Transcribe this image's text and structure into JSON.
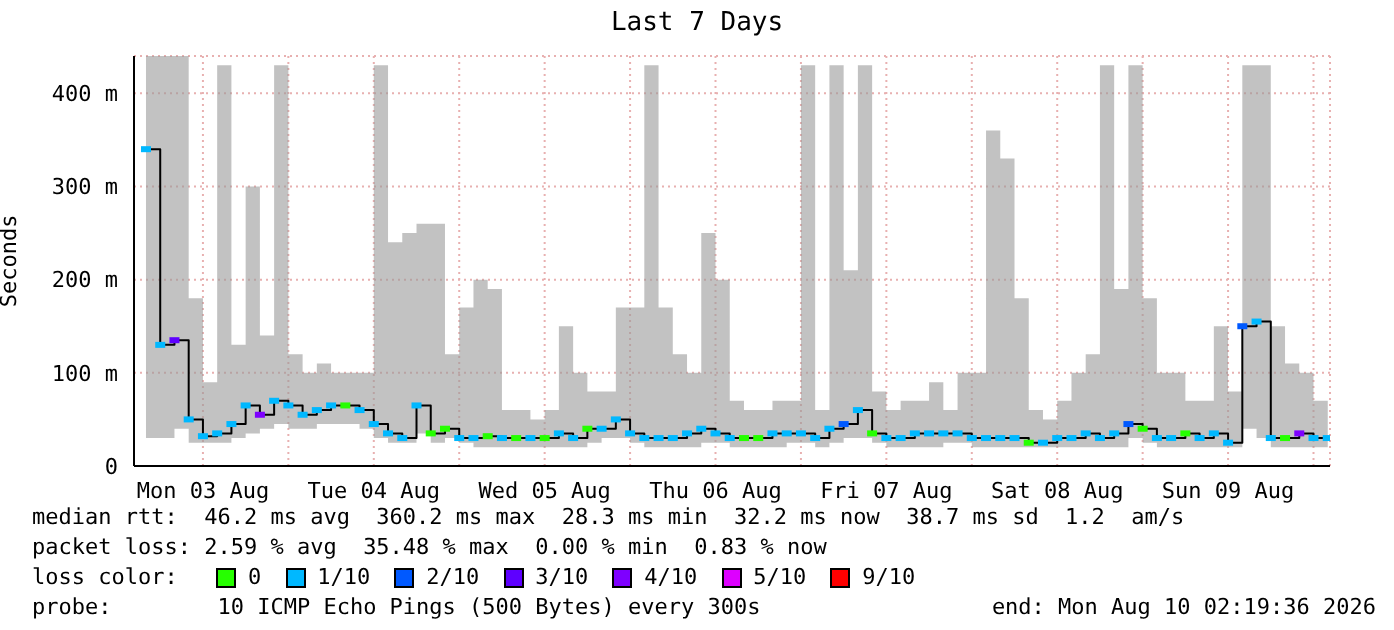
{
  "chart_data": {
    "type": "step",
    "title": "Last 7 Days",
    "ylabel": "Seconds",
    "legend_title": "loss color:",
    "legend": "bottom",
    "grid": true,
    "marker": "square",
    "annotations": [
      "median rtt:  46.2 ms avg  360.2 ms max  28.3 ms min  32.2 ms now  38.7 ms sd  1.2  am/s",
      "packet loss: 2.59 % avg  35.48 % max  0.00 % min  0.83 % now",
      "probe:        10 ICMP Echo Pings (500 Bytes) every 300s",
      "end: Mon Aug 10 02:19:36 2026"
    ],
    "xlim": [
      "2026-08-03T02:19",
      "2026-08-10T02:19"
    ],
    "xticks": [
      {
        "value": "2026-08-03T12:00",
        "label": "Mon 03 Aug"
      },
      {
        "value": "2026-08-04T00:00",
        "label": null
      },
      {
        "value": "2026-08-04T12:00",
        "label": "Tue 04 Aug"
      },
      {
        "value": "2026-08-05T00:00",
        "label": null
      },
      {
        "value": "2026-08-05T12:00",
        "label": "Wed 05 Aug"
      },
      {
        "value": "2026-08-06T00:00",
        "label": null
      },
      {
        "value": "2026-08-06T12:00",
        "label": "Thu 06 Aug"
      },
      {
        "value": "2026-08-07T00:00",
        "label": null
      },
      {
        "value": "2026-08-07T12:00",
        "label": "Fri 07 Aug"
      },
      {
        "value": "2026-08-08T00:00",
        "label": null
      },
      {
        "value": "2026-08-08T12:00",
        "label": "Sat 08 Aug"
      },
      {
        "value": "2026-08-09T00:00",
        "label": null
      },
      {
        "value": "2026-08-09T12:00",
        "label": "Sun 09 Aug"
      },
      {
        "value": "2026-08-10T00:00",
        "label": null
      }
    ],
    "ylim": [
      0,
      440
    ],
    "yticks": [
      0,
      {
        "value": 100,
        "label": "100 m"
      },
      {
        "value": 200,
        "label": "200 m"
      },
      {
        "value": 300,
        "label": "300 m"
      },
      {
        "value": 400,
        "label": "400 m"
      }
    ],
    "x": [
      "2026-08-03T04:00",
      "2026-08-03T06:00",
      "2026-08-03T08:00",
      "2026-08-03T10:00",
      "2026-08-03T12:00",
      "2026-08-03T14:00",
      "2026-08-03T16:00",
      "2026-08-03T18:00",
      "2026-08-03T20:00",
      "2026-08-03T22:00",
      "2026-08-04T00:00",
      "2026-08-04T02:00",
      "2026-08-04T04:00",
      "2026-08-04T06:00",
      "2026-08-04T08:00",
      "2026-08-04T10:00",
      "2026-08-04T12:00",
      "2026-08-04T14:00",
      "2026-08-04T16:00",
      "2026-08-04T18:00",
      "2026-08-04T20:00",
      "2026-08-04T22:00",
      "2026-08-05T00:00",
      "2026-08-05T02:00",
      "2026-08-05T04:00",
      "2026-08-05T06:00",
      "2026-08-05T08:00",
      "2026-08-05T10:00",
      "2026-08-05T12:00",
      "2026-08-05T14:00",
      "2026-08-05T16:00",
      "2026-08-05T18:00",
      "2026-08-05T20:00",
      "2026-08-05T22:00",
      "2026-08-06T00:00",
      "2026-08-06T02:00",
      "2026-08-06T04:00",
      "2026-08-06T06:00",
      "2026-08-06T08:00",
      "2026-08-06T10:00",
      "2026-08-06T12:00",
      "2026-08-06T14:00",
      "2026-08-06T16:00",
      "2026-08-06T18:00",
      "2026-08-06T20:00",
      "2026-08-06T22:00",
      "2026-08-07T00:00",
      "2026-08-07T02:00",
      "2026-08-07T04:00",
      "2026-08-07T06:00",
      "2026-08-07T08:00",
      "2026-08-07T10:00",
      "2026-08-07T12:00",
      "2026-08-07T14:00",
      "2026-08-07T16:00",
      "2026-08-07T18:00",
      "2026-08-07T20:00",
      "2026-08-07T22:00",
      "2026-08-08T00:00",
      "2026-08-08T02:00",
      "2026-08-08T04:00",
      "2026-08-08T06:00",
      "2026-08-08T08:00",
      "2026-08-08T10:00",
      "2026-08-08T12:00",
      "2026-08-08T14:00",
      "2026-08-08T16:00",
      "2026-08-08T18:00",
      "2026-08-08T20:00",
      "2026-08-08T22:00",
      "2026-08-09T00:00",
      "2026-08-09T02:00",
      "2026-08-09T04:00",
      "2026-08-09T06:00",
      "2026-08-09T08:00",
      "2026-08-09T10:00",
      "2026-08-09T12:00",
      "2026-08-09T14:00",
      "2026-08-09T16:00",
      "2026-08-09T18:00",
      "2026-08-09T20:00",
      "2026-08-09T22:00",
      "2026-08-10T00:00",
      "2026-08-10T02:00"
    ],
    "series": [
      {
        "color": "#000000",
        "marker": "none",
        "values": [
          340,
          130,
          135,
          50,
          32,
          35,
          45,
          65,
          55,
          70,
          65,
          55,
          60,
          65,
          65,
          60,
          45,
          35,
          30,
          65,
          35,
          40,
          30,
          30,
          32,
          30,
          30,
          30,
          30,
          35,
          30,
          40,
          40,
          50,
          35,
          30,
          30,
          30,
          35,
          40,
          35,
          30,
          30,
          30,
          35,
          35,
          35,
          30,
          40,
          45,
          60,
          35,
          30,
          30,
          35,
          35,
          35,
          35,
          30,
          30,
          30,
          30,
          25,
          25,
          30,
          30,
          35,
          30,
          35,
          45,
          40,
          30,
          30,
          35,
          30,
          35,
          25,
          150,
          155,
          30,
          30,
          35,
          30,
          30
        ],
        "lower": [
          30,
          30,
          40,
          25,
          25,
          25,
          30,
          35,
          40,
          45,
          40,
          40,
          45,
          45,
          45,
          40,
          30,
          25,
          25,
          35,
          25,
          30,
          25,
          20,
          20,
          20,
          20,
          20,
          20,
          20,
          20,
          25,
          30,
          30,
          25,
          20,
          20,
          20,
          20,
          25,
          25,
          20,
          20,
          20,
          20,
          25,
          25,
          20,
          25,
          30,
          30,
          25,
          20,
          20,
          20,
          20,
          25,
          25,
          20,
          20,
          20,
          20,
          20,
          20,
          20,
          20,
          20,
          20,
          20,
          30,
          25,
          20,
          20,
          20,
          20,
          20,
          20,
          40,
          30,
          20,
          20,
          20,
          20,
          20
        ],
        "upper": [
          440,
          440,
          440,
          180,
          90,
          430,
          130,
          300,
          140,
          430,
          120,
          100,
          110,
          100,
          100,
          100,
          430,
          240,
          250,
          260,
          260,
          120,
          170,
          200,
          190,
          60,
          60,
          50,
          60,
          150,
          100,
          80,
          80,
          170,
          170,
          430,
          170,
          120,
          100,
          250,
          200,
          70,
          60,
          60,
          70,
          70,
          430,
          60,
          430,
          210,
          430,
          80,
          60,
          70,
          70,
          90,
          60,
          100,
          100,
          360,
          330,
          180,
          60,
          50,
          70,
          100,
          120,
          430,
          190,
          430,
          180,
          100,
          100,
          70,
          70,
          150,
          80,
          430,
          430,
          150,
          110,
          100,
          70,
          60
        ]
      },
      {
        "name": "0",
        "type": "scatter",
        "color": "#26ff00",
        "x": [
          "2026-08-04T08:00",
          "2026-08-04T20:00",
          "2026-08-04T22:00",
          "2026-08-05T04:00",
          "2026-08-05T08:00",
          "2026-08-05T12:00",
          "2026-08-05T18:00",
          "2026-08-06T16:00",
          "2026-08-06T18:00",
          "2026-08-07T10:00",
          "2026-08-08T08:00",
          "2026-08-09T00:00",
          "2026-08-09T06:00",
          "2026-08-09T20:00"
        ],
        "values": [
          65,
          35,
          40,
          32,
          30,
          30,
          40,
          30,
          30,
          35,
          25,
          40,
          35,
          30
        ]
      },
      {
        "name": "1/10",
        "type": "scatter",
        "color": "#00b8ff",
        "x": [
          "2026-08-03T04:00",
          "2026-08-03T06:00",
          "2026-08-03T10:00",
          "2026-08-03T12:00",
          "2026-08-03T14:00",
          "2026-08-03T16:00",
          "2026-08-03T18:00",
          "2026-08-03T22:00",
          "2026-08-04T00:00",
          "2026-08-04T02:00",
          "2026-08-04T04:00",
          "2026-08-04T06:00",
          "2026-08-04T10:00",
          "2026-08-04T12:00",
          "2026-08-04T14:00",
          "2026-08-04T16:00",
          "2026-08-04T18:00",
          "2026-08-05T00:00",
          "2026-08-05T02:00",
          "2026-08-05T06:00",
          "2026-08-05T10:00",
          "2026-08-05T14:00",
          "2026-08-05T16:00",
          "2026-08-05T20:00",
          "2026-08-05T22:00",
          "2026-08-06T00:00",
          "2026-08-06T02:00",
          "2026-08-06T04:00",
          "2026-08-06T06:00",
          "2026-08-06T08:00",
          "2026-08-06T10:00",
          "2026-08-06T12:00",
          "2026-08-06T14:00",
          "2026-08-06T20:00",
          "2026-08-06T22:00",
          "2026-08-07T00:00",
          "2026-08-07T02:00",
          "2026-08-07T04:00",
          "2026-08-07T08:00",
          "2026-08-07T12:00",
          "2026-08-07T14:00",
          "2026-08-07T16:00",
          "2026-08-07T18:00",
          "2026-08-07T20:00",
          "2026-08-07T22:00",
          "2026-08-08T00:00",
          "2026-08-08T02:00",
          "2026-08-08T04:00",
          "2026-08-08T06:00",
          "2026-08-08T10:00",
          "2026-08-08T12:00",
          "2026-08-08T14:00",
          "2026-08-08T16:00",
          "2026-08-08T18:00",
          "2026-08-08T20:00",
          "2026-08-09T02:00",
          "2026-08-09T04:00",
          "2026-08-09T08:00",
          "2026-08-09T10:00",
          "2026-08-09T12:00",
          "2026-08-09T16:00",
          "2026-08-09T18:00",
          "2026-08-10T00:00",
          "2026-08-10T02:00"
        ],
        "values": [
          340,
          130,
          50,
          32,
          35,
          45,
          65,
          70,
          65,
          55,
          60,
          65,
          60,
          45,
          35,
          30,
          65,
          30,
          30,
          30,
          30,
          35,
          30,
          40,
          50,
          35,
          30,
          30,
          30,
          35,
          40,
          35,
          30,
          35,
          35,
          35,
          30,
          40,
          60,
          30,
          30,
          35,
          35,
          35,
          35,
          30,
          30,
          30,
          30,
          25,
          30,
          30,
          35,
          30,
          35,
          30,
          30,
          30,
          35,
          25,
          155,
          30,
          30,
          30
        ]
      },
      {
        "name": "2/10",
        "type": "scatter",
        "color": "#0059ff",
        "x": [
          "2026-08-07T06:00",
          "2026-08-08T22:00",
          "2026-08-09T14:00"
        ],
        "values": [
          45,
          45,
          150
        ]
      },
      {
        "name": "3/10",
        "type": "scatter",
        "color": "#5e00ff",
        "x": [
          "2026-08-03T08:00"
        ],
        "values": [
          135
        ]
      },
      {
        "name": "4/10",
        "type": "scatter",
        "color": "#7e00ff",
        "x": [
          "2026-08-03T20:00",
          "2026-08-09T22:00"
        ],
        "values": [
          55,
          35
        ]
      },
      {
        "name": "5/10",
        "type": "scatter",
        "color": "#dd00ff",
        "values": [
          null,
          null,
          null,
          null,
          null,
          null,
          null,
          null,
          null,
          null,
          null,
          null,
          null,
          null,
          null,
          null,
          null,
          null,
          null,
          null,
          null,
          null,
          null,
          null,
          null,
          null,
          null,
          null,
          null,
          null,
          null,
          null,
          null,
          null,
          null,
          null,
          null,
          null,
          null,
          null,
          null,
          null,
          null,
          null,
          null,
          null,
          null,
          null,
          null,
          null,
          null,
          null,
          null,
          null,
          null,
          null,
          null,
          null,
          null,
          null,
          null,
          null,
          null,
          null,
          null,
          null,
          null,
          null,
          null,
          null,
          null,
          null,
          null,
          null,
          null,
          null,
          null,
          null,
          null,
          null,
          null,
          null,
          null,
          null
        ]
      },
      {
        "name": "9/10",
        "type": "scatter",
        "color": "#ff0000",
        "values": [
          null,
          null,
          null,
          null,
          null,
          null,
          null,
          null,
          null,
          null,
          null,
          null,
          null,
          null,
          null,
          null,
          null,
          null,
          null,
          null,
          null,
          null,
          null,
          null,
          null,
          null,
          null,
          null,
          null,
          null,
          null,
          null,
          null,
          null,
          null,
          null,
          null,
          null,
          null,
          null,
          null,
          null,
          null,
          null,
          null,
          null,
          null,
          null,
          null,
          null,
          null,
          null,
          null,
          null,
          null,
          null,
          null,
          null,
          null,
          null,
          null,
          null,
          null,
          null,
          null,
          null,
          null,
          null,
          null,
          null,
          null,
          null,
          null,
          null,
          null,
          null,
          null,
          null,
          null,
          null,
          null,
          null,
          null,
          null
        ]
      }
    ]
  }
}
